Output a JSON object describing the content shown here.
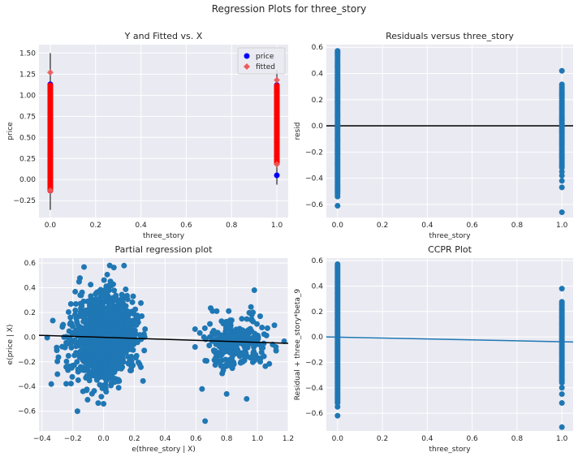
{
  "figure": {
    "suptitle": "Regression Plots for three_story",
    "background": "#ffffff",
    "axes_face": "#eaeaf2",
    "grid_color": "#ffffff",
    "colors": {
      "blue": "#1f77b4",
      "pure_blue": "#0000ff",
      "red": "#ff0000",
      "fitted": "#ee5a5a",
      "black": "#000000"
    }
  },
  "chart_data": [
    {
      "type": "scatter",
      "title": "Y and Fitted vs. X",
      "xlabel": "three_story",
      "ylabel": "price",
      "xlim": [
        -0.05,
        1.05
      ],
      "ylim": [
        -0.45,
        1.6
      ],
      "xticks": [
        0.0,
        0.2,
        0.4,
        0.6,
        0.8,
        1.0
      ],
      "xtick_labels": [
        "0.0",
        "0.2",
        "0.4",
        "0.6",
        "0.8",
        "1.0"
      ],
      "yticks": [
        -0.25,
        0.0,
        0.25,
        0.5,
        0.75,
        1.0,
        1.25,
        1.5
      ],
      "ytick_labels": [
        "−0.25",
        "0.00",
        "0.25",
        "0.50",
        "0.75",
        "1.00",
        "1.25",
        "1.50"
      ],
      "grid": true,
      "legend": {
        "position": "top-right",
        "entries": [
          {
            "label": "price",
            "marker": "circle"
          },
          {
            "label": "fitted",
            "marker": "diamond"
          }
        ]
      },
      "series": [
        {
          "name": "price",
          "x": [
            0,
            0,
            1,
            1
          ],
          "y": [
            -0.13,
            1.13,
            0.05,
            1.12
          ]
        },
        {
          "name": "fitted",
          "x": [
            0,
            0,
            1,
            1
          ],
          "y": [
            -0.13,
            1.27,
            0.18,
            1.18
          ]
        }
      ],
      "error_bars": [
        {
          "x": 0,
          "ylow": -0.36,
          "yhigh": 1.5
        },
        {
          "x": 1,
          "ylow": -0.06,
          "yhigh": 1.3
        }
      ]
    },
    {
      "type": "scatter",
      "title": "Residuals versus three_story",
      "xlabel": "three_story",
      "ylabel": "resid",
      "xlim": [
        -0.05,
        1.05
      ],
      "ylim": [
        -0.7,
        0.62
      ],
      "xticks": [
        0.0,
        0.2,
        0.4,
        0.6,
        0.8,
        1.0
      ],
      "xtick_labels": [
        "0.0",
        "0.2",
        "0.4",
        "0.6",
        "0.8",
        "1.0"
      ],
      "yticks": [
        -0.6,
        -0.4,
        -0.2,
        0.0,
        0.2,
        0.4,
        0.6
      ],
      "ytick_labels": [
        "−0.6",
        "−0.4",
        "−0.2",
        "0.0",
        "0.2",
        "0.4",
        "0.6"
      ],
      "grid": true,
      "reference_line_y": 0,
      "series": [
        {
          "x": [
            0,
            0
          ],
          "y": [
            -0.52,
            0.58
          ]
        },
        {
          "x": [
            1,
            1
          ],
          "y": [
            -0.32,
            0.32
          ]
        }
      ],
      "outliers": {
        "x": [
          0,
          0,
          1,
          1,
          1,
          1,
          1,
          1
        ],
        "y": [
          -0.54,
          -0.61,
          0.42,
          -0.35,
          -0.38,
          -0.42,
          -0.47,
          -0.66
        ]
      }
    },
    {
      "type": "scatter",
      "title": "Partial regression plot",
      "xlabel": "e(three_story | X)",
      "ylabel": "e(price | X)",
      "xlim": [
        -0.42,
        1.2
      ],
      "ylim": [
        -0.76,
        0.64
      ],
      "xticks": [
        -0.4,
        -0.2,
        0.0,
        0.2,
        0.4,
        0.6,
        0.8,
        1.0,
        1.2
      ],
      "xtick_labels": [
        "−0.4",
        "−0.2",
        "0.0",
        "0.2",
        "0.4",
        "0.6",
        "0.8",
        "1.0",
        "1.2"
      ],
      "yticks": [
        -0.6,
        -0.4,
        -0.2,
        0.0,
        0.2,
        0.4,
        0.6
      ],
      "ytick_labels": [
        "−0.6",
        "−0.4",
        "−0.2",
        "0.0",
        "0.2",
        "0.4",
        "0.6"
      ],
      "grid": true,
      "fit_line": {
        "x": [
          -0.42,
          1.2
        ],
        "y": [
          0.015,
          -0.05
        ]
      },
      "clusters": [
        {
          "x_center": 0.0,
          "x_spread": 0.1,
          "y_center": 0.0,
          "y_spread": 0.17,
          "count": 1400
        },
        {
          "x_center": 0.86,
          "x_spread": 0.1,
          "y_center": -0.04,
          "y_spread": 0.1,
          "count": 260
        }
      ],
      "outliers": {
        "x": [
          -0.3,
          -0.34,
          -0.17,
          0.04,
          0.0,
          0.64,
          0.66,
          0.8,
          0.98,
          0.93,
          1.12
        ],
        "y": [
          -0.3,
          -0.38,
          -0.6,
          0.58,
          -0.54,
          -0.42,
          -0.68,
          -0.46,
          0.38,
          -0.5,
          -0.08
        ]
      }
    },
    {
      "type": "scatter",
      "title": "CCPR Plot",
      "xlabel": "three_story",
      "ylabel": "Residual + three_story*beta_9",
      "xlim": [
        -0.05,
        1.05
      ],
      "ylim": [
        -0.74,
        0.62
      ],
      "xticks": [
        0.0,
        0.2,
        0.4,
        0.6,
        0.8,
        1.0
      ],
      "xtick_labels": [
        "0.0",
        "0.2",
        "0.4",
        "0.6",
        "0.8",
        "1.0"
      ],
      "yticks": [
        -0.6,
        -0.4,
        -0.2,
        0.0,
        0.2,
        0.4,
        0.6
      ],
      "ytick_labels": [
        "−0.6",
        "−0.4",
        "−0.2",
        "0.0",
        "0.2",
        "0.4",
        "0.6"
      ],
      "grid": true,
      "fit_line": {
        "x": [
          -0.05,
          1.05
        ],
        "y": [
          0.0,
          -0.04
        ]
      },
      "series": [
        {
          "x": [
            0,
            0
          ],
          "y": [
            -0.52,
            0.58
          ]
        },
        {
          "x": [
            1,
            1
          ],
          "y": [
            -0.36,
            0.28
          ]
        }
      ],
      "outliers": {
        "x": [
          0,
          0,
          1,
          1,
          1,
          1,
          1
        ],
        "y": [
          -0.55,
          -0.62,
          0.38,
          -0.4,
          -0.45,
          -0.52,
          -0.71
        ]
      }
    }
  ]
}
